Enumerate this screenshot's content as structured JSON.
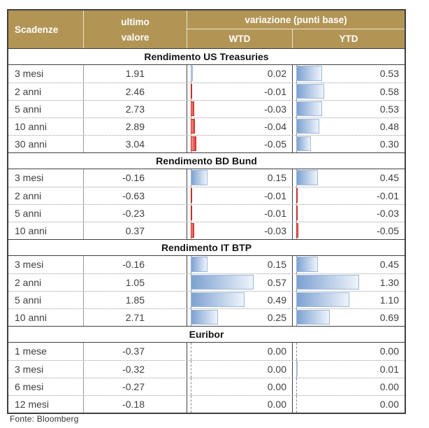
{
  "chart_data": {
    "type": "table",
    "title": "",
    "columns": [
      "Scadenze",
      "ultimo valore",
      "variazione (punti base) WTD",
      "variazione (punti base) YTD"
    ],
    "bar_columns": [
      "WTD",
      "YTD"
    ],
    "bar_scaling": "per-column data bars, length proportional to |value|/max|value|; positive bars blue, negative bars red, axis at left edge",
    "sections": [
      {
        "title": "Rendimento US Treasuries",
        "rows": [
          {
            "maturity": "3 mesi",
            "last": "1.91",
            "wtd": "0.02",
            "ytd": "0.53"
          },
          {
            "maturity": "2 anni",
            "last": "2.46",
            "wtd": "-0.01",
            "ytd": "0.58"
          },
          {
            "maturity": "5 anni",
            "last": "2.73",
            "wtd": "-0.03",
            "ytd": "0.53"
          },
          {
            "maturity": "10 anni",
            "last": "2.89",
            "wtd": "-0.04",
            "ytd": "0.48"
          },
          {
            "maturity": "30 anni",
            "last": "3.04",
            "wtd": "-0.05",
            "ytd": "0.30"
          }
        ]
      },
      {
        "title": "Rendimento BD Bund",
        "rows": [
          {
            "maturity": "3 mesi",
            "last": "-0.16",
            "wtd": "0.15",
            "ytd": "0.45"
          },
          {
            "maturity": "2 anni",
            "last": "-0.63",
            "wtd": "-0.01",
            "ytd": "-0.01"
          },
          {
            "maturity": "5 anni",
            "last": "-0.23",
            "wtd": "-0.01",
            "ytd": "-0.03"
          },
          {
            "maturity": "10 anni",
            "last": "0.37",
            "wtd": "-0.03",
            "ytd": "-0.05"
          }
        ]
      },
      {
        "title": "Rendimento IT BTP",
        "rows": [
          {
            "maturity": "3 mesi",
            "last": "-0.16",
            "wtd": "0.15",
            "ytd": "0.45"
          },
          {
            "maturity": "2 anni",
            "last": "1.05",
            "wtd": "0.57",
            "ytd": "1.30"
          },
          {
            "maturity": "5 anni",
            "last": "1.85",
            "wtd": "0.49",
            "ytd": "1.10"
          },
          {
            "maturity": "10 anni",
            "last": "2.71",
            "wtd": "0.25",
            "ytd": "0.69"
          }
        ]
      },
      {
        "title": "Euribor",
        "rows": [
          {
            "maturity": "1 mese",
            "last": "-0.37",
            "wtd": "0.00",
            "ytd": "0.00"
          },
          {
            "maturity": "3 mesi",
            "last": "-0.32",
            "wtd": "0.00",
            "ytd": "0.01"
          },
          {
            "maturity": "6 mesi",
            "last": "-0.27",
            "wtd": "0.00",
            "ytd": "0.00"
          },
          {
            "maturity": "12 mesi",
            "last": "-0.18",
            "wtd": "0.00",
            "ytd": "0.00"
          }
        ]
      }
    ]
  },
  "header": {
    "maturity": "Scadenze",
    "last_line1": "ultimo",
    "last_line2": "valore",
    "variation_group": "variazione (punti base)",
    "wtd": "WTD",
    "ytd": "YTD"
  },
  "footer": {
    "source": "Fonte: Bloomberg"
  },
  "colors": {
    "header_bg": "#b29555",
    "header_text": "#ffffff",
    "outer_border": "#3f3f3f",
    "body_text": "#3f3f3f",
    "positive_bar_start": "#7da1d1",
    "positive_bar_end": "#eef4fb",
    "positive_bar_border": "#9cb8dd",
    "negative_bar_start": "#f2988f",
    "negative_bar_end": "#df3a32",
    "negative_bar_border": "#c62f28"
  }
}
